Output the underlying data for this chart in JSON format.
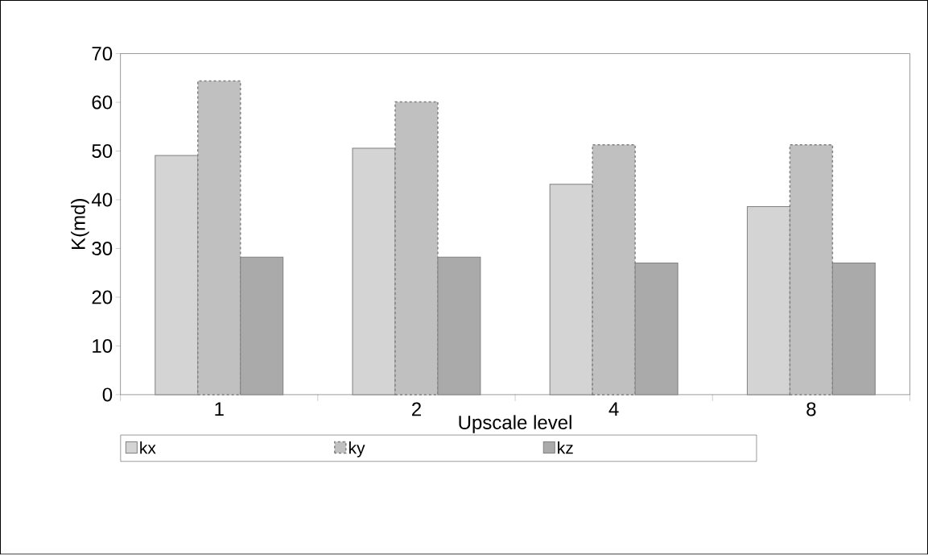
{
  "chart_data": {
    "type": "bar",
    "xlabel": "Upscale level",
    "ylabel": "K(md)",
    "categories": [
      "1",
      "2",
      "4",
      "8"
    ],
    "series": [
      {
        "name": "kx",
        "color": "#d4d4d4",
        "values": [
          49.1,
          50.6,
          43.2,
          38.6
        ]
      },
      {
        "name": "ky",
        "color": "#c0c0c0",
        "values": [
          64.4,
          60.1,
          51.3,
          51.3
        ]
      },
      {
        "name": "kz",
        "color": "#aaaaaa",
        "values": [
          28.2,
          28.2,
          27.0,
          27.0
        ]
      }
    ],
    "ylim": [
      0,
      70
    ],
    "yticks": [
      0,
      10,
      20,
      30,
      40,
      50,
      60,
      70
    ],
    "grid": false,
    "legend": "bottom"
  }
}
